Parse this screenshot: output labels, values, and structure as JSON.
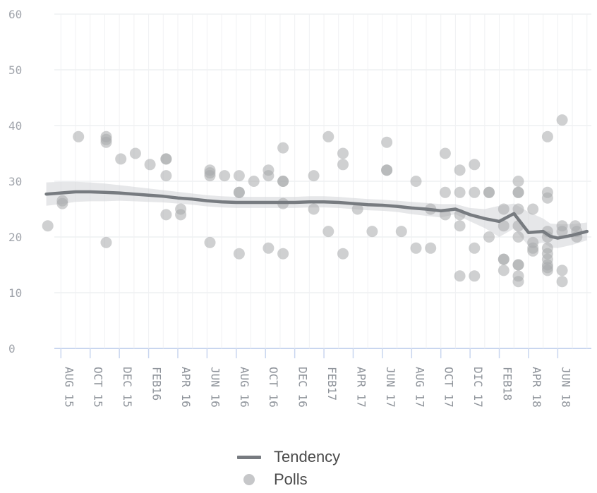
{
  "chart_data": {
    "type": "line",
    "y_ticks": [
      "0",
      "10",
      "20",
      "30",
      "40",
      "50",
      "60"
    ],
    "ylim": [
      0,
      60
    ],
    "x_ticks": [
      "AUG 15",
      "OCT 15",
      "DEC 15",
      "FEB16",
      "APR 16",
      "JUN 16",
      "AUG 16",
      "OCT 16",
      "DEC 16",
      "FEB17",
      "APR 17",
      "JUN 17",
      "AUG 17",
      "OCT 17",
      "DIC 17",
      "FEB18",
      "APR 18",
      "JUN 18"
    ],
    "xlim": [
      0.55,
      37.3
    ],
    "grid": true,
    "series": [
      {
        "name": "Tendency",
        "kind": "line",
        "color": "#777b80",
        "x": [
          0,
          1,
          2,
          3,
          4,
          5,
          6,
          7,
          8,
          9,
          10,
          11,
          12,
          13,
          14,
          15,
          16,
          17,
          18,
          19,
          20,
          21,
          22,
          23,
          24,
          25,
          26,
          27,
          28,
          29,
          30,
          31,
          32,
          33,
          34,
          34.5,
          35,
          36,
          37
        ],
        "values": [
          27.7,
          27.9,
          28.1,
          28.1,
          28.0,
          27.9,
          27.7,
          27.5,
          27.3,
          27.0,
          26.8,
          26.5,
          26.3,
          26.2,
          26.2,
          26.2,
          26.2,
          26.2,
          26.3,
          26.3,
          26.2,
          26.0,
          25.8,
          25.7,
          25.5,
          25.2,
          25.0,
          24.7,
          25.0,
          24.0,
          23.3,
          22.8,
          24.2,
          20.8,
          21.0,
          20.1,
          19.8,
          20.3,
          21.0
        ],
        "band": {
          "upper": [
            29.8,
            29.9,
            29.9,
            29.8,
            29.6,
            29.3,
            29.0,
            28.7,
            28.4,
            28.1,
            27.8,
            27.5,
            27.3,
            27.2,
            27.2,
            27.2,
            27.2,
            27.2,
            27.3,
            27.3,
            27.2,
            27.0,
            26.8,
            26.7,
            26.5,
            26.3,
            26.1,
            25.9,
            25.9,
            25.2,
            25.0,
            25.6,
            26.0,
            24.5,
            23.3,
            22.4,
            22.3,
            22.3,
            22.6
          ],
          "lower": [
            25.6,
            25.9,
            26.3,
            26.4,
            26.4,
            26.5,
            26.4,
            26.3,
            26.2,
            26.0,
            25.8,
            25.5,
            25.3,
            25.2,
            25.2,
            25.2,
            25.2,
            25.2,
            25.3,
            25.3,
            25.2,
            25.0,
            24.8,
            24.7,
            24.5,
            24.1,
            23.8,
            23.5,
            24.1,
            22.8,
            21.6,
            20.0,
            21.5,
            18.4,
            19.0,
            18.1,
            18.0,
            18.6,
            19.4
          ]
        }
      },
      {
        "name": "Polls",
        "kind": "scatter",
        "color": "#c6c7c9",
        "points": [
          [
            0.1,
            22
          ],
          [
            1.1,
            26.5
          ],
          [
            1.1,
            26
          ],
          [
            2.2,
            38
          ],
          [
            4.1,
            38
          ],
          [
            4.1,
            37
          ],
          [
            4.1,
            37.5
          ],
          [
            4.1,
            19
          ],
          [
            5.1,
            34
          ],
          [
            6.1,
            35
          ],
          [
            7.1,
            33
          ],
          [
            8.2,
            34
          ],
          [
            8.2,
            34
          ],
          [
            8.2,
            31
          ],
          [
            8.2,
            24
          ],
          [
            9.2,
            25
          ],
          [
            9.2,
            24
          ],
          [
            11.2,
            32
          ],
          [
            11.2,
            31.5
          ],
          [
            11.2,
            31
          ],
          [
            11.2,
            19
          ],
          [
            12.2,
            31
          ],
          [
            13.2,
            28
          ],
          [
            13.2,
            28
          ],
          [
            13.2,
            31
          ],
          [
            13.2,
            17
          ],
          [
            14.2,
            30
          ],
          [
            15.2,
            32
          ],
          [
            15.2,
            31
          ],
          [
            15.2,
            18
          ],
          [
            16.2,
            30
          ],
          [
            16.2,
            30
          ],
          [
            16.2,
            36
          ],
          [
            16.2,
            26
          ],
          [
            16.2,
            17
          ],
          [
            18.3,
            31
          ],
          [
            18.3,
            25
          ],
          [
            19.3,
            38
          ],
          [
            19.3,
            21
          ],
          [
            20.3,
            35
          ],
          [
            20.3,
            33
          ],
          [
            20.3,
            17
          ],
          [
            21.3,
            25
          ],
          [
            22.3,
            21
          ],
          [
            23.3,
            37
          ],
          [
            23.3,
            32
          ],
          [
            23.3,
            32
          ],
          [
            24.3,
            21
          ],
          [
            25.3,
            30
          ],
          [
            25.3,
            18
          ],
          [
            26.3,
            25
          ],
          [
            26.3,
            18
          ],
          [
            27.3,
            35
          ],
          [
            27.3,
            28
          ],
          [
            27.3,
            24
          ],
          [
            28.3,
            32
          ],
          [
            28.3,
            28
          ],
          [
            28.3,
            24
          ],
          [
            28.3,
            22
          ],
          [
            28.3,
            13
          ],
          [
            29.3,
            33
          ],
          [
            29.3,
            28
          ],
          [
            29.3,
            18
          ],
          [
            29.3,
            13
          ],
          [
            30.3,
            28
          ],
          [
            30.3,
            28
          ],
          [
            30.3,
            20
          ],
          [
            31.3,
            25
          ],
          [
            31.3,
            22
          ],
          [
            31.3,
            16
          ],
          [
            31.3,
            16
          ],
          [
            31.3,
            14
          ],
          [
            32.3,
            30
          ],
          [
            32.3,
            28
          ],
          [
            32.3,
            28
          ],
          [
            32.3,
            25
          ],
          [
            32.3,
            22
          ],
          [
            32.3,
            20
          ],
          [
            32.3,
            15
          ],
          [
            32.3,
            15
          ],
          [
            32.3,
            13
          ],
          [
            32.3,
            12
          ],
          [
            33.3,
            25
          ],
          [
            33.3,
            19
          ],
          [
            33.3,
            18
          ],
          [
            33.3,
            17.5
          ],
          [
            34.3,
            38
          ],
          [
            34.3,
            28
          ],
          [
            34.3,
            27
          ],
          [
            34.3,
            21
          ],
          [
            34.3,
            20
          ],
          [
            34.3,
            18
          ],
          [
            34.3,
            17
          ],
          [
            34.3,
            16
          ],
          [
            34.3,
            15
          ],
          [
            34.3,
            14.5
          ],
          [
            34.3,
            14
          ],
          [
            35.3,
            41
          ],
          [
            35.3,
            22
          ],
          [
            35.3,
            21
          ],
          [
            35.3,
            14
          ],
          [
            35.3,
            12
          ],
          [
            36.2,
            22
          ],
          [
            36.3,
            21
          ],
          [
            36.3,
            20
          ]
        ]
      }
    ]
  },
  "legend": {
    "tendency_label": "Tendency",
    "polls_label": "Polls"
  }
}
